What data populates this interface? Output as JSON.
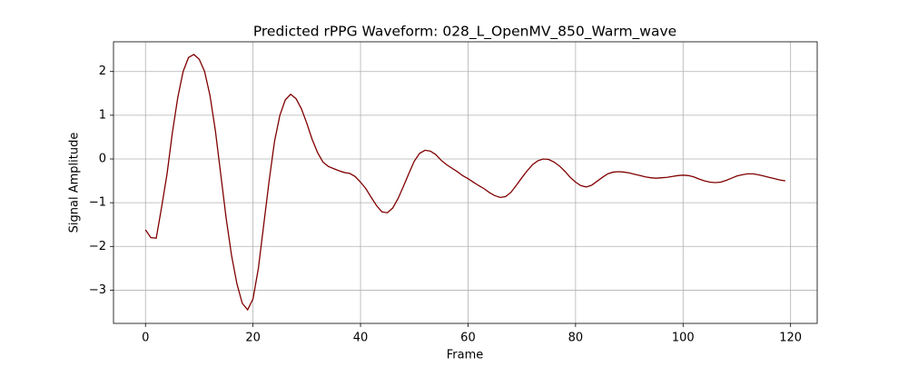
{
  "chart_data": {
    "type": "line",
    "title": "Predicted rPPG Waveform: 028_L_OpenMV_850_Warm_wave",
    "x_label": "Frame",
    "y_label": "Signal Amplitude",
    "color": "#800000",
    "grid": true,
    "x": [
      0,
      1,
      2,
      3,
      4,
      5,
      6,
      7,
      8,
      9,
      10,
      11,
      12,
      13,
      14,
      15,
      16,
      17,
      18,
      19,
      20,
      21,
      22,
      23,
      24,
      25,
      26,
      27,
      28,
      29,
      30,
      31,
      32,
      33,
      34,
      35,
      36,
      37,
      38,
      39,
      40,
      41,
      42,
      43,
      44,
      45,
      46,
      47,
      48,
      49,
      50,
      51,
      52,
      53,
      54,
      55,
      56,
      57,
      58,
      59,
      60,
      61,
      62,
      63,
      64,
      65,
      66,
      67,
      68,
      69,
      70,
      71,
      72,
      73,
      74,
      75,
      76,
      77,
      78,
      79,
      80,
      81,
      82,
      83,
      84,
      85,
      86,
      87,
      88,
      89,
      90,
      91,
      92,
      93,
      94,
      95,
      96,
      97,
      98,
      99,
      100,
      101,
      102,
      103,
      104,
      105,
      106,
      107,
      108,
      109,
      110,
      111,
      112,
      113,
      114,
      115,
      116,
      117,
      118,
      119
    ],
    "values": [
      -1.62,
      -1.8,
      -1.81,
      -1.1,
      -0.35,
      0.6,
      1.4,
      2.0,
      2.32,
      2.39,
      2.28,
      2.0,
      1.45,
      0.65,
      -0.35,
      -1.35,
      -2.2,
      -2.85,
      -3.3,
      -3.45,
      -3.2,
      -2.5,
      -1.5,
      -0.5,
      0.4,
      1.0,
      1.35,
      1.48,
      1.38,
      1.15,
      0.82,
      0.45,
      0.15,
      -0.07,
      -0.17,
      -0.22,
      -0.27,
      -0.31,
      -0.33,
      -0.4,
      -0.53,
      -0.68,
      -0.88,
      -1.07,
      -1.21,
      -1.23,
      -1.12,
      -0.9,
      -0.62,
      -0.33,
      -0.05,
      0.13,
      0.2,
      0.18,
      0.1,
      -0.03,
      -0.13,
      -0.21,
      -0.29,
      -0.38,
      -0.45,
      -0.53,
      -0.61,
      -0.68,
      -0.77,
      -0.84,
      -0.88,
      -0.86,
      -0.76,
      -0.6,
      -0.43,
      -0.27,
      -0.13,
      -0.04,
      0.0,
      -0.01,
      -0.07,
      -0.16,
      -0.28,
      -0.42,
      -0.53,
      -0.61,
      -0.64,
      -0.6,
      -0.51,
      -0.42,
      -0.34,
      -0.3,
      -0.29,
      -0.3,
      -0.32,
      -0.35,
      -0.38,
      -0.41,
      -0.43,
      -0.44,
      -0.43,
      -0.42,
      -0.4,
      -0.38,
      -0.37,
      -0.38,
      -0.41,
      -0.46,
      -0.5,
      -0.53,
      -0.54,
      -0.53,
      -0.49,
      -0.44,
      -0.39,
      -0.36,
      -0.34,
      -0.34,
      -0.36,
      -0.39,
      -0.42,
      -0.45,
      -0.48,
      -0.5
    ],
    "xlim": [
      -5.95,
      124.95
    ],
    "xticks": [
      0,
      20,
      40,
      60,
      80,
      100,
      120
    ],
    "ylim": [
      -3.76,
      2.68
    ],
    "yticks": [
      {
        "value": -3,
        "label": "−3"
      },
      {
        "value": -2,
        "label": "−2"
      },
      {
        "value": -1,
        "label": "−1"
      },
      0,
      1,
      2
    ]
  }
}
